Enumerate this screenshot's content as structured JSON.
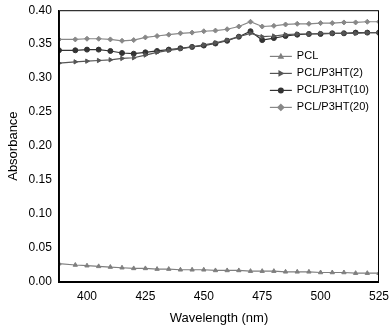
{
  "chart_data": {
    "type": "line",
    "x_label": "Wavelength (nm)",
    "y_label": "Absorbance",
    "x": [
      388,
      395,
      400,
      405,
      410,
      415,
      420,
      425,
      430,
      435,
      440,
      445,
      450,
      455,
      460,
      465,
      470,
      475,
      480,
      485,
      490,
      495,
      500,
      505,
      510,
      515,
      520,
      525
    ],
    "series": [
      {
        "name": "PCL",
        "color": "#7f7f7f",
        "marker": "triangle",
        "values": [
          0.027,
          0.025,
          0.024,
          0.023,
          0.022,
          0.021,
          0.02,
          0.02,
          0.019,
          0.019,
          0.018,
          0.018,
          0.018,
          0.017,
          0.017,
          0.017,
          0.016,
          0.016,
          0.016,
          0.015,
          0.015,
          0.015,
          0.014,
          0.014,
          0.014,
          0.013,
          0.013,
          0.013
        ]
      },
      {
        "name": "PCL/P3HT(2)",
        "color": "#555555",
        "marker": "triangle-right",
        "values": [
          0.322,
          0.324,
          0.325,
          0.326,
          0.327,
          0.329,
          0.33,
          0.334,
          0.338,
          0.341,
          0.343,
          0.346,
          0.349,
          0.352,
          0.356,
          0.361,
          0.366,
          0.361,
          0.362,
          0.364,
          0.365,
          0.365,
          0.366,
          0.366,
          0.366,
          0.366,
          0.367,
          0.367
        ]
      },
      {
        "name": "PCL/P3HT(10)",
        "color": "#333333",
        "marker": "circle",
        "values": [
          0.341,
          0.341,
          0.342,
          0.342,
          0.34,
          0.337,
          0.336,
          0.338,
          0.34,
          0.342,
          0.344,
          0.346,
          0.348,
          0.351,
          0.355,
          0.361,
          0.369,
          0.356,
          0.359,
          0.362,
          0.364,
          0.365,
          0.365,
          0.366,
          0.366,
          0.367,
          0.367,
          0.367
        ]
      },
      {
        "name": "PCL/P3HT(20)",
        "color": "#888888",
        "marker": "diamond",
        "values": [
          0.357,
          0.357,
          0.358,
          0.358,
          0.357,
          0.355,
          0.356,
          0.36,
          0.362,
          0.364,
          0.366,
          0.367,
          0.369,
          0.37,
          0.372,
          0.376,
          0.383,
          0.376,
          0.377,
          0.379,
          0.38,
          0.38,
          0.381,
          0.381,
          0.382,
          0.382,
          0.383,
          0.383
        ]
      }
    ],
    "xlim": [
      388,
      525
    ],
    "xticks": [
      400,
      425,
      450,
      475,
      500,
      525
    ],
    "ylim": [
      0,
      0.4
    ],
    "yticks": [
      {
        "value": 0,
        "label": "0.00"
      },
      0.05,
      {
        "value": 0.1,
        "label": "0.10"
      },
      0.15,
      {
        "value": 0.2,
        "label": "0.20"
      },
      0.25,
      {
        "value": 0.3,
        "label": "0.30"
      },
      0.35,
      {
        "value": 0.4,
        "label": "0.40"
      }
    ],
    "grid": false,
    "legend": "upper right"
  }
}
